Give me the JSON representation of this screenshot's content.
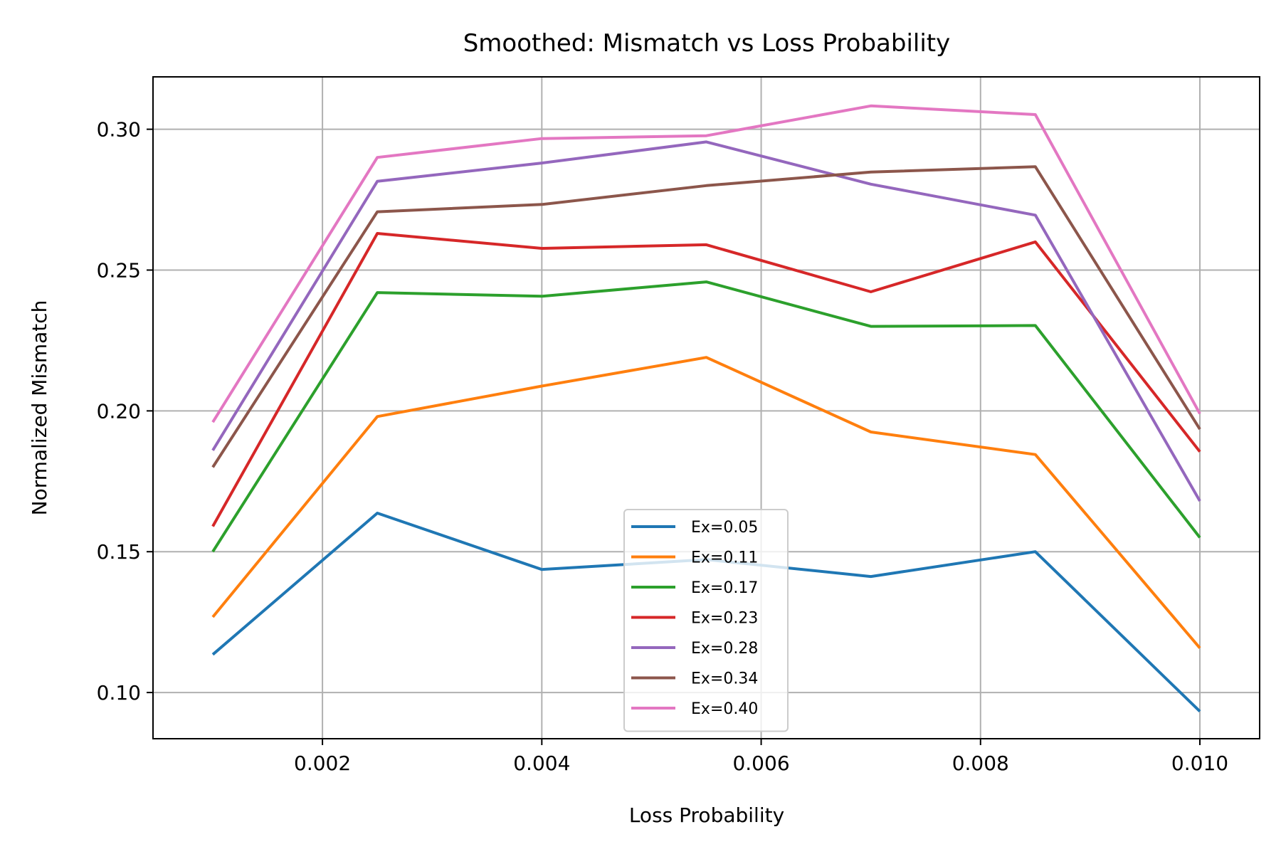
{
  "chart_data": {
    "type": "line",
    "title": "Smoothed: Mismatch vs Loss Probability",
    "xlabel": "Loss Probability",
    "ylabel": "Normalized Mismatch",
    "x": [
      0.001,
      0.0025,
      0.004,
      0.0055,
      0.007,
      0.0085,
      0.01
    ],
    "xlim": [
      0.000455,
      0.010545
    ],
    "ylim": [
      0.0836,
      0.3186
    ],
    "xticks": [
      0.002,
      0.004,
      0.006,
      0.008,
      0.01
    ],
    "xtick_labels": [
      "0.002",
      "0.004",
      "0.006",
      "0.008",
      "0.010"
    ],
    "yticks": [
      0.1,
      0.15,
      0.2,
      0.25,
      0.3
    ],
    "ytick_labels": [
      "0.10",
      "0.15",
      "0.20",
      "0.25",
      "0.30"
    ],
    "grid": true,
    "legend_position": "bottom-center",
    "series": [
      {
        "name": "Ex=0.05",
        "color": "#1f77b4",
        "values": [
          0.1135,
          0.1637,
          0.1437,
          0.1472,
          0.1412,
          0.15,
          0.0933
        ]
      },
      {
        "name": "Ex=0.11",
        "color": "#ff7f0e",
        "values": [
          0.1268,
          0.198,
          0.2088,
          0.219,
          0.1925,
          0.1845,
          0.1158
        ]
      },
      {
        "name": "Ex=0.17",
        "color": "#2ca02c",
        "values": [
          0.15,
          0.242,
          0.2407,
          0.2458,
          0.23,
          0.2303,
          0.155
        ]
      },
      {
        "name": "Ex=0.23",
        "color": "#d62728",
        "values": [
          0.159,
          0.263,
          0.2577,
          0.259,
          0.2423,
          0.26,
          0.1855
        ]
      },
      {
        "name": "Ex=0.28",
        "color": "#9467bd",
        "values": [
          0.186,
          0.2815,
          0.288,
          0.2955,
          0.2805,
          0.2695,
          0.168
        ]
      },
      {
        "name": "Ex=0.34",
        "color": "#8c564b",
        "values": [
          0.18,
          0.2707,
          0.2733,
          0.28,
          0.2848,
          0.2867,
          0.1935
        ]
      },
      {
        "name": "Ex=0.40",
        "color": "#e377c2",
        "values": [
          0.196,
          0.29,
          0.2967,
          0.2977,
          0.3083,
          0.3052,
          0.199
        ]
      }
    ]
  }
}
